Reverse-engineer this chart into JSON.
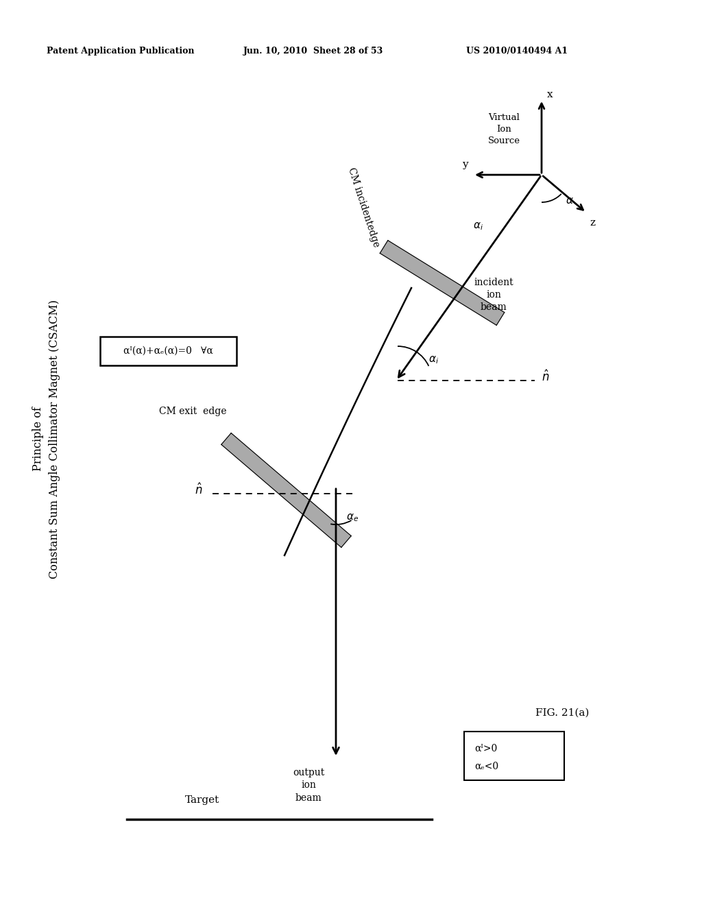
{
  "bg_color": "#ffffff",
  "header_left": "Patent Application Publication",
  "header_mid": "Jun. 10, 2010  Sheet 28 of 53",
  "header_right": "US 2010/0140494 A1",
  "title_line1": "Principle of",
  "title_line2": "Constant Sum Angle Collimator Magnet (CSACM)",
  "formula": "αᴵ(α)+αₑ(α)=0   ∀α",
  "label_cm_exit": "CM exit  edge",
  "label_cm_incident": "CM incidentedge",
  "label_target": "Target",
  "label_output": "output\nion\nbeam",
  "label_incident": "incident\nion\nbeam",
  "label_virtual": "Virtual\nIon\nSource",
  "label_fig": "FIG. 21(a)",
  "label_x": "x",
  "label_y": "y",
  "label_z": "z",
  "legend_ai_pos": "αᴵ>0",
  "legend_ae_neg": "αₑ<0"
}
